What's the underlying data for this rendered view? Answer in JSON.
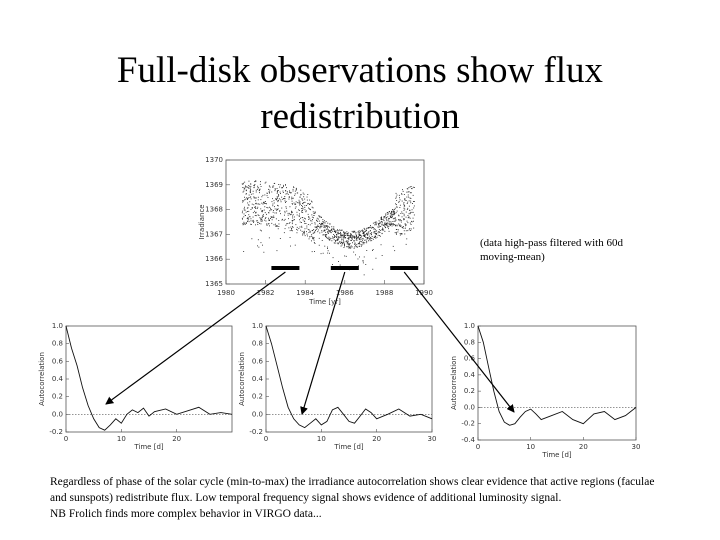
{
  "slide": {
    "title_line1": "Full-disk observations show flux",
    "title_line2": "redistribution",
    "filter_note_line1": "(data high-pass filtered with 60d",
    "filter_note_line2": "moving-mean)",
    "caption_line1": "Regardless of phase of the solar cycle (min-to-max) the irradiance autocorrelation shows clear evidence that active regions (faculae",
    "caption_line2": "and sunspots) redistribute flux. Low temporal frequency signal shows evidence of additional luminosity signal.",
    "caption_line3": "NB Frolich finds more complex behavior in VIRGO data..."
  },
  "chart_data": [
    {
      "type": "scatter",
      "title": "",
      "xlabel": "Time [yr]",
      "ylabel": "Irradiance",
      "x_ticks": [
        "1980",
        "1982",
        "1984",
        "1986",
        "1988",
        "1990"
      ],
      "y_ticks": [
        "1365",
        "1366",
        "1367",
        "1368",
        "1369",
        "1370"
      ],
      "xlim": [
        1980,
        1990
      ],
      "ylim": [
        1365,
        1370
      ],
      "bar_markers": [
        "1983",
        "1986",
        "1989"
      ]
    },
    {
      "type": "line",
      "xlabel": "Time [d]",
      "ylabel": "Autocorrelation",
      "x_ticks": [
        "0",
        "10",
        "20"
      ],
      "y_ticks": [
        "1.0",
        "0.8",
        "0.6",
        "0.4",
        "0.2",
        "0.0",
        "-0.2"
      ],
      "xlim": [
        0,
        30
      ],
      "ylim": [
        -0.2,
        1.0
      ],
      "x": [
        0,
        1,
        2,
        3,
        4,
        5,
        6,
        7,
        8,
        9,
        10,
        11,
        12,
        13,
        14,
        15,
        16,
        18,
        20,
        22,
        24,
        26,
        28,
        30
      ],
      "y": [
        1.0,
        0.75,
        0.55,
        0.3,
        0.1,
        -0.05,
        -0.15,
        -0.18,
        -0.12,
        -0.05,
        -0.1,
        0.0,
        0.05,
        0.02,
        0.07,
        -0.02,
        0.03,
        0.06,
        0.0,
        0.04,
        0.08,
        0.0,
        0.02,
        0.0
      ]
    },
    {
      "type": "line",
      "xlabel": "Time [d]",
      "ylabel": "Autocorrelation",
      "x_ticks": [
        "0",
        "10",
        "20",
        "30"
      ],
      "y_ticks": [
        "1.0",
        "0.8",
        "0.6",
        "0.4",
        "0.2",
        "0.0",
        "-0.2"
      ],
      "xlim": [
        0,
        30
      ],
      "ylim": [
        -0.2,
        1.0
      ],
      "x": [
        0,
        1,
        2,
        3,
        4,
        5,
        6,
        7,
        8,
        9,
        10,
        11,
        12,
        13,
        14,
        15,
        16,
        17,
        18,
        19,
        20,
        22,
        24,
        26,
        28,
        30
      ],
      "y": [
        1.0,
        0.8,
        0.55,
        0.3,
        0.08,
        -0.05,
        -0.12,
        -0.15,
        -0.1,
        -0.05,
        -0.12,
        -0.08,
        0.05,
        0.08,
        0.0,
        -0.08,
        -0.1,
        -0.02,
        0.06,
        0.02,
        -0.05,
        0.0,
        0.06,
        -0.02,
        0.0,
        -0.05
      ]
    },
    {
      "type": "line",
      "xlabel": "Time [d]",
      "ylabel": "Autocorrelation",
      "x_ticks": [
        "0",
        "10",
        "20",
        "30"
      ],
      "y_ticks": [
        "1.0",
        "0.8",
        "0.6",
        "0.4",
        "0.2",
        "0.0",
        "-0.2",
        "-0.4"
      ],
      "xlim": [
        0,
        30
      ],
      "ylim": [
        -0.4,
        1.0
      ],
      "x": [
        0,
        1,
        2,
        3,
        4,
        5,
        6,
        7,
        8,
        9,
        10,
        11,
        12,
        14,
        16,
        18,
        20,
        22,
        24,
        26,
        28,
        30
      ],
      "y": [
        1.0,
        0.8,
        0.5,
        0.2,
        -0.05,
        -0.18,
        -0.22,
        -0.2,
        -0.12,
        -0.05,
        -0.02,
        -0.08,
        -0.15,
        -0.1,
        -0.05,
        -0.15,
        -0.2,
        -0.08,
        -0.05,
        -0.15,
        -0.1,
        0.0
      ]
    }
  ]
}
